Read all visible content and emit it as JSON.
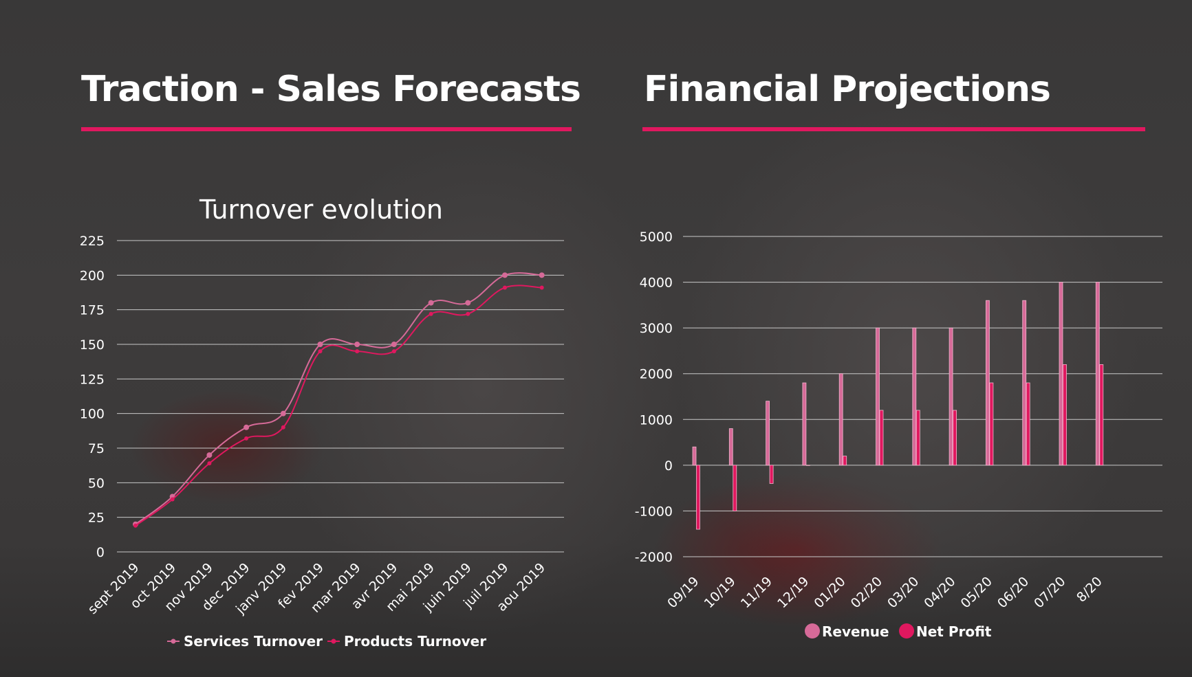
{
  "slide": {
    "left_title": "Traction - Sales Forecasts",
    "right_title": "Financial Projections",
    "accent_color": "#e0185f"
  },
  "chart_data": [
    {
      "type": "line",
      "title": "Turnover evolution",
      "categories": [
        "sept 2019",
        "oct 2019",
        "nov 2019",
        "dec 2019",
        "janv 2019",
        "fev 2019",
        "mar 2019",
        "avr 2019",
        "mai 2019",
        "juin 2019",
        "juil 2019",
        "aou 2019"
      ],
      "series": [
        {
          "name": "Services Turnover",
          "color": "#d66a98",
          "values": [
            20,
            40,
            70,
            90,
            100,
            150,
            150,
            150,
            180,
            180,
            200,
            200
          ]
        },
        {
          "name": "Products Turnover",
          "color": "#e0185f",
          "values": [
            19,
            38,
            64,
            82,
            90,
            145,
            145,
            145,
            172,
            172,
            191,
            191
          ]
        }
      ],
      "ylim": [
        0,
        225
      ],
      "yticks": [
        0,
        25,
        50,
        75,
        100,
        125,
        150,
        175,
        200,
        225
      ],
      "grid": true,
      "legend": "bottom"
    },
    {
      "type": "bar",
      "categories": [
        "09/19",
        "10/19",
        "11/19",
        "12/19",
        "01/20",
        "02/20",
        "03/20",
        "04/20",
        "05/20",
        "06/20",
        "07/20",
        "8/20"
      ],
      "series": [
        {
          "name": "Revenue",
          "color": "#d66a98",
          "values": [
            400,
            800,
            1400,
            1800,
            2000,
            3000,
            3000,
            3000,
            3600,
            3600,
            4000,
            4000
          ]
        },
        {
          "name": "Net Profit",
          "color": "#e0185f",
          "values": [
            -1400,
            -1000,
            -400,
            0,
            200,
            1200,
            1200,
            1200,
            1800,
            1800,
            2200,
            2200
          ]
        }
      ],
      "ylim": [
        -2000,
        5000
      ],
      "yticks": [
        5000,
        4000,
        3000,
        2000,
        1000,
        0,
        -1000,
        -2000
      ],
      "grid": true,
      "legend": "bottom"
    }
  ]
}
